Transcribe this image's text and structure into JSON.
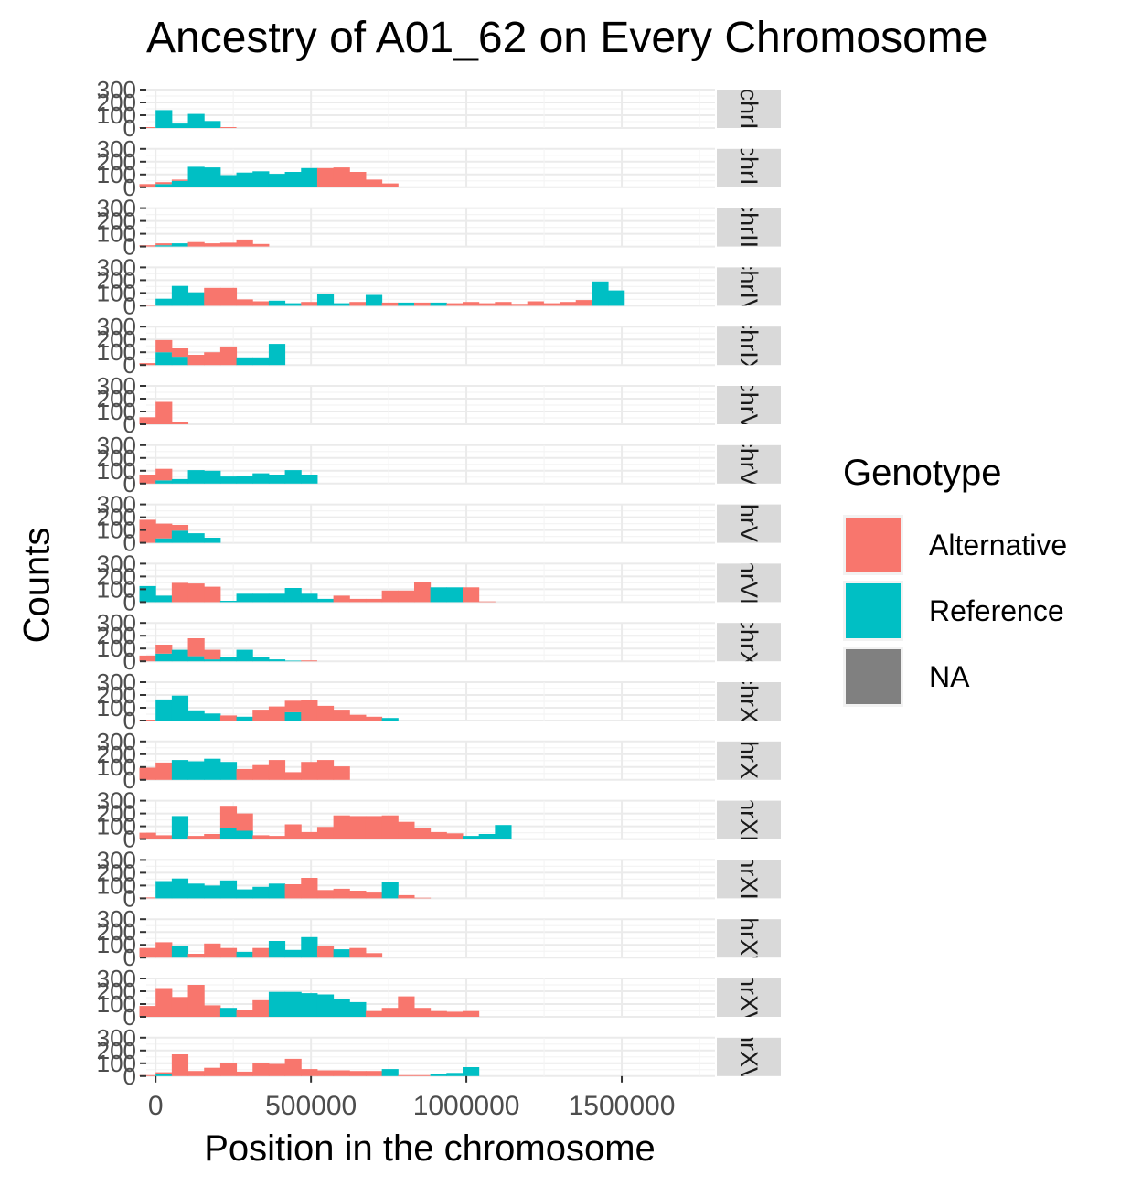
{
  "chart_data": {
    "type": "bar",
    "title": "Ancestry of A01_62 on Every Chromosome",
    "xlabel": "Position in the chromosome",
    "ylabel": "Counts",
    "xlim": [
      -30000,
      1800000
    ],
    "ylim": [
      0,
      300
    ],
    "x_ticks": [
      "0",
      "500000",
      "1000000",
      "1500000"
    ],
    "x_tick_values": [
      0,
      500000,
      1000000,
      1500000
    ],
    "y_ticks": [
      "0",
      "100",
      "200",
      "300"
    ],
    "y_tick_values": [
      0,
      100,
      200,
      300
    ],
    "bin_width": 52000,
    "first_bin_center": -26000,
    "grid": true,
    "legend": {
      "title": "Genotype",
      "placement": "right",
      "entries": [
        {
          "label": "Alternative",
          "color": "#F8766D"
        },
        {
          "label": "Reference",
          "color": "#00BFC4"
        },
        {
          "label": "NA",
          "color": "#808080"
        }
      ]
    },
    "panels": [
      {
        "strip": "chrI",
        "reference": [
          0,
          140,
          35,
          110,
          55,
          0
        ],
        "alternative": [
          0,
          0,
          0,
          0,
          0,
          0
        ]
      },
      {
        "strip": "chrII",
        "reference": [
          0,
          25,
          50,
          160,
          155,
          95,
          115,
          125,
          105,
          120,
          150,
          0,
          0,
          0,
          0,
          0
        ],
        "alternative": [
          25,
          15,
          10,
          0,
          0,
          0,
          0,
          0,
          0,
          0,
          0,
          150,
          155,
          120,
          60,
          30
        ]
      },
      {
        "strip": "chrIII",
        "reference": [
          0,
          10,
          25,
          0,
          0,
          0,
          0,
          0
        ],
        "alternative": [
          10,
          15,
          0,
          35,
          25,
          30,
          55,
          20
        ]
      },
      {
        "strip": "chrIV",
        "reference": [
          0,
          55,
          155,
          105,
          0,
          0,
          0,
          0,
          40,
          20,
          0,
          95,
          20,
          0,
          85,
          0,
          25,
          0,
          25,
          0,
          0,
          0,
          0,
          0,
          0,
          0,
          0,
          0,
          190,
          120
        ],
        "alternative": [
          0,
          0,
          0,
          0,
          140,
          140,
          50,
          35,
          0,
          0,
          30,
          0,
          0,
          30,
          0,
          25,
          0,
          25,
          0,
          20,
          30,
          20,
          30,
          15,
          35,
          20,
          30,
          45,
          0,
          0
        ]
      },
      {
        "strip": "chrIX",
        "reference": [
          0,
          100,
          65,
          0,
          0,
          0,
          60,
          60,
          165
        ],
        "alternative": [
          15,
          95,
          65,
          80,
          100,
          145,
          0,
          0,
          0
        ]
      },
      {
        "strip": "chrV",
        "reference": [
          0,
          0,
          0
        ],
        "alternative": [
          55,
          175,
          15
        ]
      },
      {
        "strip": "chrVI",
        "reference": [
          0,
          25,
          35,
          105,
          100,
          55,
          60,
          80,
          70,
          105,
          70
        ],
        "alternative": [
          70,
          90,
          0,
          0,
          0,
          0,
          0,
          0,
          0,
          0,
          0
        ]
      },
      {
        "strip": "chrVII",
        "reference": [
          0,
          35,
          95,
          75,
          40
        ],
        "alternative": [
          180,
          115,
          45,
          0,
          0
        ]
      },
      {
        "strip": "chrVIII",
        "reference": [
          125,
          50,
          0,
          0,
          0,
          10,
          65,
          65,
          65,
          110,
          65,
          25,
          0,
          0,
          0,
          0,
          0,
          0,
          115,
          115,
          0,
          0
        ],
        "alternative": [
          0,
          0,
          150,
          145,
          120,
          0,
          0,
          0,
          0,
          0,
          0,
          0,
          50,
          25,
          25,
          90,
          90,
          155,
          0,
          0,
          115,
          5
        ]
      },
      {
        "strip": "chrX",
        "reference": [
          0,
          60,
          90,
          40,
          15,
          30,
          90,
          30,
          15,
          5,
          0
        ],
        "alternative": [
          45,
          70,
          0,
          140,
          75,
          0,
          0,
          0,
          0,
          0,
          0
        ]
      },
      {
        "strip": "chrXI",
        "reference": [
          0,
          165,
          195,
          80,
          55,
          0,
          30,
          0,
          0,
          65,
          0,
          0,
          0,
          0,
          0,
          20
        ],
        "alternative": [
          0,
          0,
          0,
          0,
          0,
          40,
          0,
          85,
          110,
          90,
          160,
          115,
          85,
          45,
          30,
          0
        ]
      },
      {
        "strip": "chrXII",
        "reference": [
          0,
          0,
          155,
          145,
          165,
          140,
          0,
          0,
          0,
          0,
          0,
          0,
          0
        ],
        "alternative": [
          95,
          135,
          0,
          0,
          0,
          0,
          85,
          115,
          155,
          60,
          140,
          155,
          105
        ]
      },
      {
        "strip": "chrXIII",
        "reference": [
          0,
          0,
          180,
          0,
          0,
          85,
          65,
          0,
          0,
          0,
          0,
          0,
          0,
          0,
          0,
          0,
          0,
          0,
          0,
          0,
          25,
          40,
          110
        ],
        "alternative": [
          50,
          30,
          0,
          25,
          40,
          175,
          135,
          30,
          25,
          115,
          55,
          95,
          185,
          180,
          180,
          185,
          135,
          90,
          55,
          45,
          0,
          0,
          0
        ]
      },
      {
        "strip": "chrXIV",
        "reference": [
          0,
          135,
          155,
          115,
          100,
          140,
          70,
          90,
          115,
          0,
          0,
          0,
          0,
          0,
          0,
          130,
          0,
          0
        ],
        "alternative": [
          0,
          0,
          0,
          0,
          0,
          0,
          0,
          0,
          0,
          110,
          160,
          65,
          75,
          60,
          45,
          0,
          25,
          5
        ]
      },
      {
        "strip": "chrXV",
        "reference": [
          0,
          0,
          90,
          0,
          0,
          0,
          45,
          0,
          130,
          60,
          160,
          0,
          65,
          0,
          0
        ],
        "alternative": [
          75,
          120,
          0,
          30,
          110,
          75,
          0,
          75,
          0,
          0,
          0,
          90,
          0,
          75,
          35
        ]
      },
      {
        "strip": "chrXVI",
        "reference": [
          0,
          0,
          0,
          0,
          0,
          70,
          0,
          0,
          195,
          195,
          185,
          175,
          140,
          115,
          0,
          0,
          0,
          0,
          0,
          0,
          0
        ],
        "alternative": [
          85,
          225,
          155,
          250,
          90,
          0,
          55,
          130,
          0,
          0,
          0,
          0,
          0,
          0,
          45,
          70,
          160,
          70,
          45,
          40,
          45
        ]
      },
      {
        "strip": "chrXVII",
        "reference": [
          0,
          15,
          0,
          0,
          0,
          0,
          0,
          0,
          0,
          0,
          0,
          0,
          0,
          0,
          0,
          55,
          0,
          0,
          15,
          25,
          70
        ],
        "alternative": [
          0,
          15,
          170,
          40,
          65,
          105,
          35,
          105,
          95,
          135,
          55,
          45,
          45,
          40,
          40,
          0,
          0,
          0,
          0,
          0,
          0
        ]
      }
    ]
  }
}
